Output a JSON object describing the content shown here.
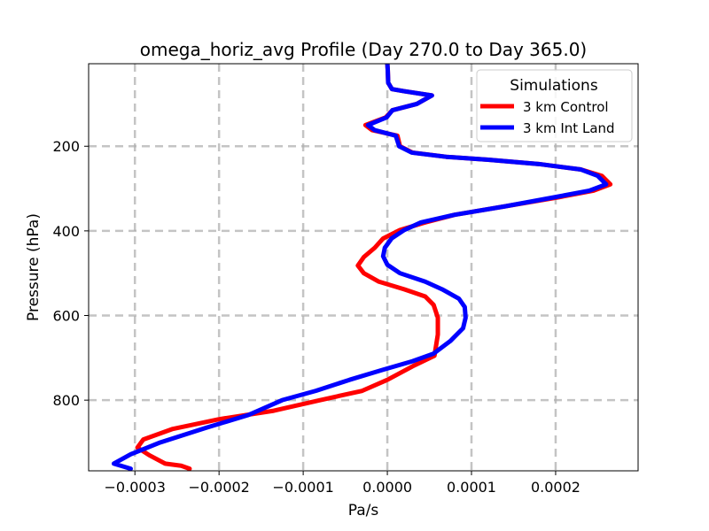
{
  "chart_data": {
    "type": "line",
    "title": "omega_horiz_avg Profile (Day 270.0 to Day 365.0)",
    "xlabel": "Pa/s",
    "ylabel": "Pressure (hPa)",
    "xlim": [
      -0.000355,
      0.000298
    ],
    "ylim": [
      967,
      5
    ],
    "y_inverted": true,
    "grid": true,
    "x_ticks": [
      -0.0003,
      -0.0002,
      -0.0001,
      0.0,
      0.0001,
      0.0002
    ],
    "x_tick_labels": [
      "−0.0003",
      "−0.0002",
      "−0.0001",
      "0.0000",
      "0.0001",
      "0.0002"
    ],
    "y_ticks": [
      200,
      400,
      600,
      800
    ],
    "y_tick_labels": [
      "200",
      "400",
      "600",
      "800"
    ],
    "legend": {
      "title": "Simulations",
      "position": "top-right"
    },
    "series": [
      {
        "name": "3 km Control",
        "color": "#ff0000",
        "points": [
          [
            0.0,
            5
          ],
          [
            5e-07,
            20
          ],
          [
            1e-06,
            50
          ],
          [
            5.5e-06,
            65
          ],
          [
            2e-05,
            70
          ],
          [
            5.3e-05,
            80
          ],
          [
            3.5e-05,
            100
          ],
          [
            6e-06,
            115
          ],
          [
            -2e-06,
            132
          ],
          [
            -2.6e-05,
            150
          ],
          [
            -1.8e-05,
            162
          ],
          [
            1.2e-05,
            175
          ],
          [
            1.5e-05,
            200
          ],
          [
            3e-05,
            215
          ],
          [
            7e-05,
            225
          ],
          [
            0.00012,
            232
          ],
          [
            0.00018,
            242
          ],
          [
            0.00023,
            255
          ],
          [
            0.000255,
            270
          ],
          [
            0.000265,
            290
          ],
          [
            0.000245,
            305
          ],
          [
            0.000205,
            320
          ],
          [
            0.00014,
            342
          ],
          [
            8e-05,
            362
          ],
          [
            4.5e-05,
            380
          ],
          [
            1.5e-05,
            398
          ],
          [
            -5e-06,
            418
          ],
          [
            -1.5e-05,
            440
          ],
          [
            -2.8e-05,
            462
          ],
          [
            -3.5e-05,
            482
          ],
          [
            -2.8e-05,
            500
          ],
          [
            -1e-05,
            520
          ],
          [
            2e-05,
            538
          ],
          [
            4.5e-05,
            555
          ],
          [
            5.5e-05,
            575
          ],
          [
            6e-05,
            605
          ],
          [
            6e-05,
            645
          ],
          [
            5.6e-05,
            695
          ],
          [
            3e-05,
            720
          ],
          [
            0.0,
            752
          ],
          [
            -3e-05,
            778
          ],
          [
            -8e-05,
            800
          ],
          [
            -0.000135,
            825
          ],
          [
            -0.0002,
            845
          ],
          [
            -0.000255,
            868
          ],
          [
            -0.00029,
            893
          ],
          [
            -0.000297,
            912
          ],
          [
            -0.000283,
            930
          ],
          [
            -0.000264,
            950
          ],
          [
            -0.000245,
            955
          ],
          [
            -0.000235,
            962
          ]
        ]
      },
      {
        "name": "3 km Int Land",
        "color": "#0000ff",
        "points": [
          [
            0.0,
            5
          ],
          [
            5e-07,
            20
          ],
          [
            1e-06,
            50
          ],
          [
            5.5e-06,
            65
          ],
          [
            2e-05,
            70
          ],
          [
            5.3e-05,
            80
          ],
          [
            3.5e-05,
            100
          ],
          [
            6e-06,
            115
          ],
          [
            -1e-06,
            132
          ],
          [
            -2.3e-05,
            150
          ],
          [
            -1.5e-05,
            162
          ],
          [
            1e-05,
            175
          ],
          [
            1.4e-05,
            200
          ],
          [
            2.9e-05,
            215
          ],
          [
            7e-05,
            225
          ],
          [
            0.00012,
            232
          ],
          [
            0.00018,
            242
          ],
          [
            0.00023,
            255
          ],
          [
            0.00025,
            270
          ],
          [
            0.00026,
            290
          ],
          [
            0.00024,
            305
          ],
          [
            0.0002,
            320
          ],
          [
            0.00014,
            342
          ],
          [
            8e-05,
            362
          ],
          [
            4e-05,
            380
          ],
          [
            2e-05,
            398
          ],
          [
            5e-06,
            418
          ],
          [
            -3e-06,
            440
          ],
          [
            -5e-06,
            460
          ],
          [
            0.0,
            480
          ],
          [
            1.5e-05,
            500
          ],
          [
            4.5e-05,
            520
          ],
          [
            6.5e-05,
            538
          ],
          [
            8.5e-05,
            560
          ],
          [
            9.2e-05,
            580
          ],
          [
            9.3e-05,
            605
          ],
          [
            9e-05,
            630
          ],
          [
            7.5e-05,
            660
          ],
          [
            5.5e-05,
            690
          ],
          [
            3e-05,
            708
          ],
          [
            -5e-06,
            728
          ],
          [
            -4.5e-05,
            752
          ],
          [
            -8.5e-05,
            778
          ],
          [
            -0.000125,
            800
          ],
          [
            -0.000165,
            835
          ],
          [
            -0.000215,
            865
          ],
          [
            -0.00027,
            900
          ],
          [
            -0.000305,
            928
          ],
          [
            -0.000325,
            950
          ],
          [
            -0.000305,
            962
          ]
        ]
      }
    ]
  }
}
